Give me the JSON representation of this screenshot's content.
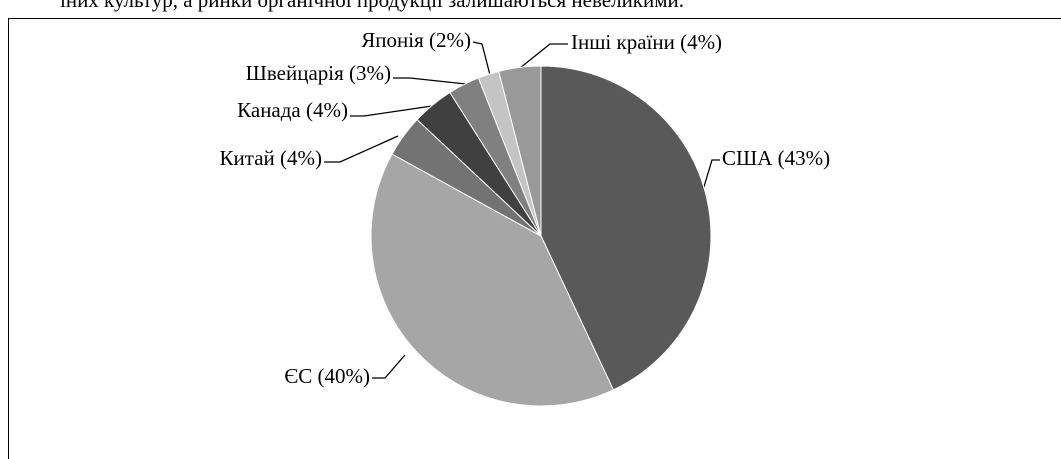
{
  "header_text": "іних культур, а ринки органічної продукції залишаються невеликими.",
  "chart_data": {
    "type": "pie",
    "values": [
      43,
      40,
      4,
      4,
      3,
      2,
      4
    ],
    "value_labels": [
      "США (43%)",
      "ЄС (40%)",
      "Китай (4%)",
      "Канада (4%)",
      "Швейцарія (3%)",
      "Японія (2%)",
      "Інші країни (4%)"
    ],
    "colors": [
      "#595959",
      "#a6a6a6",
      "#737373",
      "#404040",
      "#808080",
      "#c4c4c4",
      "#999999"
    ]
  }
}
